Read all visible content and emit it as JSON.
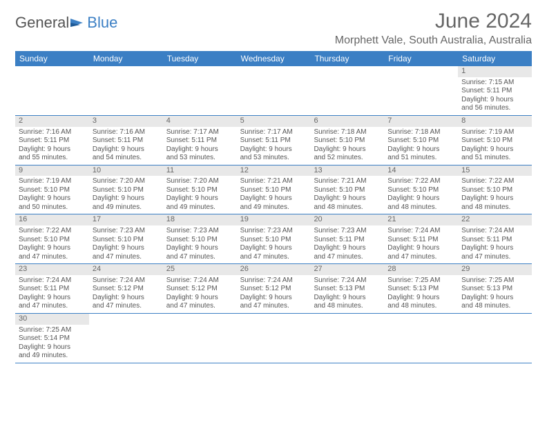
{
  "logo": {
    "part1": "General",
    "part2": "Blue"
  },
  "title": "June 2024",
  "location": "Morphett Vale, South Australia, Australia",
  "dayNames": [
    "Sunday",
    "Monday",
    "Tuesday",
    "Wednesday",
    "Thursday",
    "Friday",
    "Saturday"
  ],
  "colors": {
    "headerBar": "#3b7fc4",
    "headerText": "#ffffff",
    "cellNumBg": "#e8e8e8",
    "text": "#555555",
    "titleText": "#666666"
  },
  "fonts": {
    "title_size": 30,
    "location_size": 16,
    "dayheader_size": 12,
    "cell_size": 10
  },
  "firstDayOffset": 6,
  "days": [
    {
      "n": 1,
      "sunrise": "7:15 AM",
      "sunset": "5:11 PM",
      "daylight": "9 hours and 56 minutes."
    },
    {
      "n": 2,
      "sunrise": "7:16 AM",
      "sunset": "5:11 PM",
      "daylight": "9 hours and 55 minutes."
    },
    {
      "n": 3,
      "sunrise": "7:16 AM",
      "sunset": "5:11 PM",
      "daylight": "9 hours and 54 minutes."
    },
    {
      "n": 4,
      "sunrise": "7:17 AM",
      "sunset": "5:11 PM",
      "daylight": "9 hours and 53 minutes."
    },
    {
      "n": 5,
      "sunrise": "7:17 AM",
      "sunset": "5:11 PM",
      "daylight": "9 hours and 53 minutes."
    },
    {
      "n": 6,
      "sunrise": "7:18 AM",
      "sunset": "5:10 PM",
      "daylight": "9 hours and 52 minutes."
    },
    {
      "n": 7,
      "sunrise": "7:18 AM",
      "sunset": "5:10 PM",
      "daylight": "9 hours and 51 minutes."
    },
    {
      "n": 8,
      "sunrise": "7:19 AM",
      "sunset": "5:10 PM",
      "daylight": "9 hours and 51 minutes."
    },
    {
      "n": 9,
      "sunrise": "7:19 AM",
      "sunset": "5:10 PM",
      "daylight": "9 hours and 50 minutes."
    },
    {
      "n": 10,
      "sunrise": "7:20 AM",
      "sunset": "5:10 PM",
      "daylight": "9 hours and 49 minutes."
    },
    {
      "n": 11,
      "sunrise": "7:20 AM",
      "sunset": "5:10 PM",
      "daylight": "9 hours and 49 minutes."
    },
    {
      "n": 12,
      "sunrise": "7:21 AM",
      "sunset": "5:10 PM",
      "daylight": "9 hours and 49 minutes."
    },
    {
      "n": 13,
      "sunrise": "7:21 AM",
      "sunset": "5:10 PM",
      "daylight": "9 hours and 48 minutes."
    },
    {
      "n": 14,
      "sunrise": "7:22 AM",
      "sunset": "5:10 PM",
      "daylight": "9 hours and 48 minutes."
    },
    {
      "n": 15,
      "sunrise": "7:22 AM",
      "sunset": "5:10 PM",
      "daylight": "9 hours and 48 minutes."
    },
    {
      "n": 16,
      "sunrise": "7:22 AM",
      "sunset": "5:10 PM",
      "daylight": "9 hours and 47 minutes."
    },
    {
      "n": 17,
      "sunrise": "7:23 AM",
      "sunset": "5:10 PM",
      "daylight": "9 hours and 47 minutes."
    },
    {
      "n": 18,
      "sunrise": "7:23 AM",
      "sunset": "5:10 PM",
      "daylight": "9 hours and 47 minutes."
    },
    {
      "n": 19,
      "sunrise": "7:23 AM",
      "sunset": "5:10 PM",
      "daylight": "9 hours and 47 minutes."
    },
    {
      "n": 20,
      "sunrise": "7:23 AM",
      "sunset": "5:11 PM",
      "daylight": "9 hours and 47 minutes."
    },
    {
      "n": 21,
      "sunrise": "7:24 AM",
      "sunset": "5:11 PM",
      "daylight": "9 hours and 47 minutes."
    },
    {
      "n": 22,
      "sunrise": "7:24 AM",
      "sunset": "5:11 PM",
      "daylight": "9 hours and 47 minutes."
    },
    {
      "n": 23,
      "sunrise": "7:24 AM",
      "sunset": "5:11 PM",
      "daylight": "9 hours and 47 minutes."
    },
    {
      "n": 24,
      "sunrise": "7:24 AM",
      "sunset": "5:12 PM",
      "daylight": "9 hours and 47 minutes."
    },
    {
      "n": 25,
      "sunrise": "7:24 AM",
      "sunset": "5:12 PM",
      "daylight": "9 hours and 47 minutes."
    },
    {
      "n": 26,
      "sunrise": "7:24 AM",
      "sunset": "5:12 PM",
      "daylight": "9 hours and 47 minutes."
    },
    {
      "n": 27,
      "sunrise": "7:24 AM",
      "sunset": "5:13 PM",
      "daylight": "9 hours and 48 minutes."
    },
    {
      "n": 28,
      "sunrise": "7:25 AM",
      "sunset": "5:13 PM",
      "daylight": "9 hours and 48 minutes."
    },
    {
      "n": 29,
      "sunrise": "7:25 AM",
      "sunset": "5:13 PM",
      "daylight": "9 hours and 48 minutes."
    },
    {
      "n": 30,
      "sunrise": "7:25 AM",
      "sunset": "5:14 PM",
      "daylight": "9 hours and 49 minutes."
    }
  ],
  "labels": {
    "sunrise": "Sunrise:",
    "sunset": "Sunset:",
    "daylight": "Daylight:"
  }
}
